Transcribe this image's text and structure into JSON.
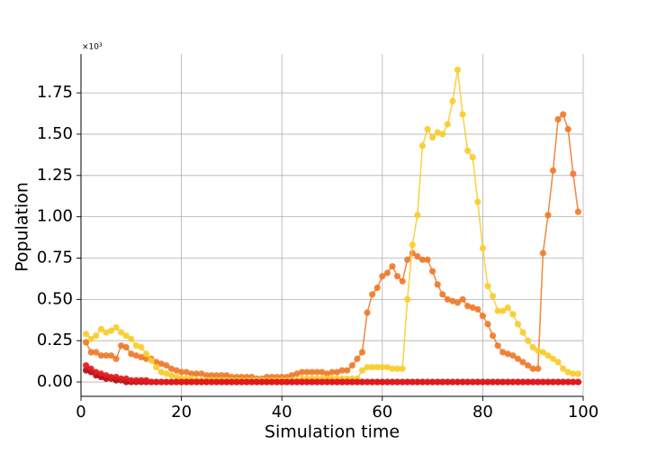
{
  "chart_data": {
    "type": "line",
    "ylabel": "Population",
    "xlabel": "Simulation time",
    "offset_text": "×10³",
    "x": [
      1,
      2,
      3,
      4,
      5,
      6,
      7,
      8,
      9,
      10,
      11,
      12,
      13,
      14,
      15,
      16,
      17,
      18,
      19,
      20,
      21,
      22,
      23,
      24,
      25,
      26,
      27,
      28,
      29,
      30,
      31,
      32,
      33,
      34,
      35,
      36,
      37,
      38,
      39,
      40,
      41,
      42,
      43,
      44,
      45,
      46,
      47,
      48,
      49,
      50,
      51,
      52,
      53,
      54,
      55,
      56,
      57,
      58,
      59,
      60,
      61,
      62,
      63,
      64,
      65,
      66,
      67,
      68,
      69,
      70,
      71,
      72,
      73,
      74,
      75,
      76,
      77,
      78,
      79,
      80,
      81,
      82,
      83,
      84,
      85,
      86,
      87,
      88,
      89,
      90,
      91,
      92,
      93,
      94,
      95,
      96,
      97,
      98,
      99
    ],
    "series": [
      {
        "color": "#ee7a2a",
        "values": [
          0.24,
          0.18,
          0.18,
          0.16,
          0.16,
          0.16,
          0.14,
          0.22,
          0.21,
          0.17,
          0.16,
          0.15,
          0.14,
          0.14,
          0.12,
          0.11,
          0.1,
          0.08,
          0.07,
          0.06,
          0.06,
          0.05,
          0.05,
          0.05,
          0.04,
          0.04,
          0.04,
          0.04,
          0.04,
          0.03,
          0.03,
          0.03,
          0.03,
          0.03,
          0.02,
          0.02,
          0.03,
          0.03,
          0.03,
          0.03,
          0.03,
          0.04,
          0.05,
          0.06,
          0.06,
          0.06,
          0.06,
          0.06,
          0.05,
          0.06,
          0.06,
          0.07,
          0.07,
          0.1,
          0.14,
          0.18,
          0.42,
          0.53,
          0.57,
          0.64,
          0.66,
          0.7,
          0.64,
          0.61,
          0.74,
          0.78,
          0.76,
          0.74,
          0.74,
          0.67,
          0.59,
          0.53,
          0.5,
          0.49,
          0.48,
          0.5,
          0.46,
          0.45,
          0.44,
          0.4,
          0.35,
          0.28,
          0.22,
          0.18,
          0.17,
          0.16,
          0.14,
          0.12,
          0.1,
          0.08,
          0.08,
          0.78,
          1.01,
          1.28,
          1.59,
          1.62,
          1.53,
          1.26,
          1.03
        ]
      },
      {
        "color": "#f8cc2c",
        "values": [
          0.29,
          0.26,
          0.28,
          0.32,
          0.3,
          0.31,
          0.33,
          0.3,
          0.28,
          0.26,
          0.22,
          0.21,
          0.17,
          0.13,
          0.09,
          0.06,
          0.05,
          0.04,
          0.03,
          0.02,
          0.02,
          0.02,
          0.01,
          0.01,
          0.01,
          0.01,
          0.01,
          0.01,
          0.01,
          0.01,
          0.01,
          0.01,
          0.01,
          0.01,
          0.01,
          0.01,
          0.01,
          0.01,
          0.01,
          0.01,
          0.01,
          0.01,
          0.01,
          0.02,
          0.02,
          0.02,
          0.02,
          0.02,
          0.02,
          0.02,
          0.02,
          0.02,
          0.02,
          0.02,
          0.02,
          0.07,
          0.09,
          0.09,
          0.09,
          0.09,
          0.09,
          0.08,
          0.08,
          0.08,
          0.5,
          0.83,
          1.01,
          1.43,
          1.53,
          1.48,
          1.51,
          1.5,
          1.56,
          1.7,
          1.89,
          1.62,
          1.4,
          1.36,
          1.09,
          0.81,
          0.58,
          0.52,
          0.43,
          0.43,
          0.45,
          0.41,
          0.35,
          0.3,
          0.25,
          0.21,
          0.19,
          0.18,
          0.16,
          0.14,
          0.12,
          0.08,
          0.06,
          0.05,
          0.05
        ]
      },
      {
        "color": "#a50f15",
        "values": [
          0.07,
          0.06,
          0.04,
          0.03,
          0.02,
          0.02,
          0.01,
          0.01,
          0,
          0,
          0,
          0,
          0,
          0,
          0,
          0,
          0,
          0,
          0,
          0,
          0,
          0,
          0,
          0,
          0,
          0,
          0,
          0,
          0,
          0,
          0,
          0,
          0,
          0,
          0,
          0,
          0,
          0,
          0,
          0,
          0,
          0,
          0,
          0,
          0,
          0,
          0,
          0,
          0,
          0,
          0,
          0,
          0,
          0,
          0,
          0,
          0,
          0,
          0,
          0,
          0,
          0,
          0,
          0,
          0,
          0,
          0,
          0,
          0,
          0,
          0,
          0,
          0,
          0,
          0,
          0,
          0,
          0,
          0,
          0,
          0,
          0,
          0,
          0,
          0,
          0,
          0,
          0,
          0,
          0,
          0,
          0,
          0,
          0,
          0,
          0,
          0,
          0,
          0
        ]
      },
      {
        "color": "#e31a1c",
        "values": [
          0.1,
          0.08,
          0.06,
          0.05,
          0.04,
          0.03,
          0.03,
          0.02,
          0.02,
          0.01,
          0.01,
          0.01,
          0.01,
          0,
          0,
          0,
          0,
          0,
          0,
          0,
          0,
          0,
          0,
          0,
          0,
          0,
          0,
          0,
          0,
          0,
          0,
          0,
          0,
          0,
          0,
          0,
          0,
          0,
          0,
          0,
          0,
          0,
          0,
          0,
          0,
          0,
          0,
          0,
          0,
          0,
          0,
          0,
          0,
          0,
          0,
          0,
          0,
          0,
          0,
          0,
          0,
          0,
          0,
          0,
          0,
          0,
          0,
          0,
          0,
          0,
          0,
          0,
          0,
          0,
          0,
          0,
          0,
          0,
          0,
          0,
          0,
          0,
          0,
          0,
          0,
          0,
          0,
          0,
          0,
          0,
          0,
          0,
          0,
          0,
          0,
          0,
          0,
          0,
          0
        ]
      }
    ],
    "xlim": [
      0,
      100
    ],
    "xticks": [
      0,
      20,
      40,
      60,
      80,
      100
    ],
    "ylim": [
      -0.087,
      1.985
    ],
    "yticks": [
      {
        "value": 0,
        "label": "0.00"
      },
      0.25,
      {
        "value": 0.5,
        "label": "0.50"
      },
      0.75,
      {
        "value": 1,
        "label": "1.00"
      },
      1.25,
      {
        "value": 1.5,
        "label": "1.50"
      },
      1.75
    ],
    "grid": true
  }
}
